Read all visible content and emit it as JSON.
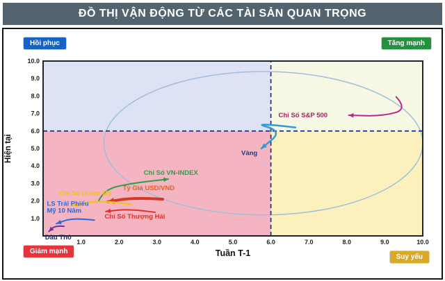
{
  "header": {
    "title": "ĐỒ THỊ VẬN ĐỘNG TỪ CÁC TÀI SẢN QUAN TRỌNG"
  },
  "corner_badges": {
    "top_left": {
      "label": "Hồi phục",
      "color": "#1563c4"
    },
    "top_right": {
      "label": "Tăng mạnh",
      "color": "#23913d"
    },
    "bottom_left": {
      "label": "Giảm mạnh",
      "color": "#e5343c"
    },
    "bottom_right": {
      "label": "Suy yếu",
      "color": "#d9a92a"
    }
  },
  "chart_data": {
    "type": "scatter",
    "title": "ĐỒ THỊ VẬN ĐỘNG TỪ CÁC TÀI SẢN QUAN TRỌNG",
    "xlabel": "Tuần T-1",
    "ylabel": "Hiện tại",
    "xlim": [
      0,
      10
    ],
    "ylim": [
      0,
      10
    ],
    "xticks": [
      1,
      2,
      3,
      4,
      5,
      6,
      7,
      8,
      9,
      10
    ],
    "xtick_labels": [
      "1.0",
      "2.0",
      "3.0",
      "4.0",
      "5.0",
      "6.0",
      "7.0",
      "8.0",
      "9.0",
      "10.0"
    ],
    "yticks": [
      1,
      2,
      3,
      4,
      5,
      6,
      7,
      8,
      9,
      10
    ],
    "ytick_labels": [
      "1.0",
      "2.0",
      "3.0",
      "4.0",
      "5.0",
      "6.0",
      "7.0",
      "8.0",
      "9.0",
      "10.0"
    ],
    "grid": false,
    "quadrant_split": {
      "x": 6,
      "y": 6
    },
    "quadrants": {
      "top_left": {
        "color": "#dde3f4"
      },
      "top_right": {
        "color": "#f6f8e3"
      },
      "bottom_left": {
        "color": "#f5b4c1"
      },
      "bottom_right": {
        "color": "#fcf1bd"
      }
    },
    "divider_color": "#1d3b8c",
    "border_color": "#1b2430",
    "ellipse": {
      "cx": 5.8,
      "cy": 5.3,
      "rx": 4.2,
      "ry": 4.1,
      "color": "#9fbede"
    },
    "series": [
      {
        "id": "sp500",
        "name": "Chỉ Số S&P 500",
        "color": "#b8288c",
        "label_color": "#a5215f",
        "width": 2,
        "points": [
          [
            9.3,
            7.95
          ],
          [
            9.6,
            7.25
          ],
          [
            8.95,
            6.85
          ],
          [
            8.05,
            6.9
          ]
        ],
        "label_pos": [
          6.2,
          6.78
        ]
      },
      {
        "id": "gold",
        "name": "Vàng",
        "color": "#2e9bd8",
        "label_color": "#1a3c8f",
        "width": 2.5,
        "points": [
          [
            6.65,
            6.2
          ],
          [
            5.45,
            6.5
          ],
          [
            6.3,
            6.0
          ],
          [
            5.75,
            5.0
          ]
        ],
        "label_pos": [
          5.22,
          4.62
        ]
      },
      {
        "id": "vnindex",
        "name": "Chỉ Số VN-INDEX",
        "color": "#2f9e44",
        "label_color": "#2f9e44",
        "width": 2,
        "points": [
          [
            1.45,
            1.95
          ],
          [
            1.6,
            2.65
          ],
          [
            2.3,
            3.0
          ],
          [
            3.3,
            3.25
          ]
        ],
        "label_pos": [
          2.65,
          3.5
        ]
      },
      {
        "id": "usdvnd",
        "name": "Tỷ Giá USD/VND",
        "color": "#d63920",
        "label_color": "#e8601c",
        "width": 4,
        "points": [
          [
            3.15,
            2.1
          ],
          [
            2.4,
            2.2
          ],
          [
            1.7,
            1.95
          ]
        ],
        "label_pos": [
          2.1,
          2.62
        ]
      },
      {
        "id": "usd-index",
        "name": "Chỉ Số Dollar Mỹ",
        "color": "#f0c028",
        "label_color": "#f0c020",
        "width": 2.5,
        "points": [
          [
            2.3,
            1.8
          ],
          [
            1.55,
            2.05
          ],
          [
            0.8,
            1.75
          ]
        ],
        "label_pos": [
          0.42,
          2.32
        ]
      },
      {
        "id": "us10y",
        "name": "LS Trái Phiếu\nMỹ 10 Năm",
        "color": "#2a6ad4",
        "label_color": "#2a6ad4",
        "width": 2,
        "points": [
          [
            1.35,
            0.9
          ],
          [
            0.8,
            1.05
          ],
          [
            0.35,
            0.7
          ]
        ],
        "label_pos": [
          0.1,
          1.72
        ]
      },
      {
        "id": "shanghai",
        "name": "Chỉ Số Thượng Hải",
        "color": "#e03028",
        "label_color": "#e03028",
        "width": 2,
        "points": [
          [
            2.95,
            1.35
          ],
          [
            2.3,
            1.55
          ],
          [
            1.65,
            1.4
          ]
        ],
        "label_pos": [
          1.62,
          1.0
        ]
      },
      {
        "id": "crude-oil",
        "name": "Dầu Thô",
        "color": "#7030a0",
        "label_color": "#1a2a5a",
        "width": 2,
        "points": [
          [
            0.55,
            0.55
          ],
          [
            0.32,
            0.6
          ],
          [
            0.15,
            0.25
          ]
        ],
        "label_pos": [
          0.05,
          -0.2
        ]
      }
    ]
  }
}
